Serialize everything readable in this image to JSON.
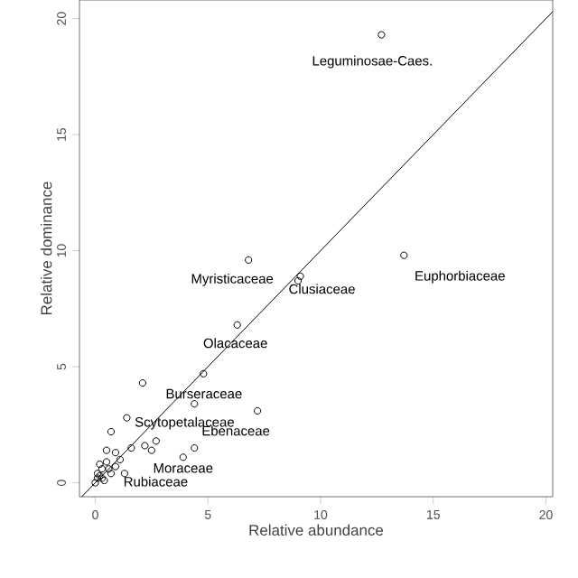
{
  "chart_data": {
    "type": "scatter",
    "xlabel": "Relative abundance",
    "ylabel": "Relative dominance",
    "xlim": [
      -0.7,
      20.3
    ],
    "ylim": [
      -0.6,
      20.8
    ],
    "xticks": [
      0,
      5,
      10,
      15,
      20
    ],
    "yticks": [
      0,
      5,
      10,
      15,
      20
    ],
    "series": [
      {
        "color": "#000000",
        "marker": "circle",
        "x": [
          12.7,
          13.7,
          6.8,
          9.1,
          9.0,
          6.3,
          4.8,
          2.1,
          4.4,
          7.2,
          1.4,
          0.7,
          2.7,
          2.2,
          1.6,
          2.5,
          4.4,
          3.9,
          0.5,
          0.9,
          1.1,
          0.3,
          0.7,
          0.2,
          0.4,
          0.1,
          0.6,
          1.3,
          0.2,
          0.5,
          0.9,
          0.0,
          0.1,
          0.3
        ],
        "values": [
          19.3,
          9.8,
          9.6,
          8.9,
          8.7,
          6.8,
          4.7,
          4.3,
          3.4,
          3.1,
          2.8,
          2.2,
          1.8,
          1.6,
          1.5,
          1.4,
          1.5,
          1.1,
          0.9,
          0.7,
          1.0,
          0.6,
          0.4,
          0.3,
          0.1,
          0.2,
          0.6,
          0.4,
          0.8,
          1.4,
          1.3,
          0.0,
          0.4,
          0.2
        ]
      },
      {
        "type": "line",
        "color": "#000000",
        "marker": "none",
        "x": [
          -0.6,
          20.3
        ],
        "values": [
          -0.6,
          20.3
        ]
      }
    ],
    "annotations": [
      {
        "text": "Leguminosae-Caes.",
        "x": 12.7,
        "y": 19.3
      },
      {
        "text": "Euphorbiaceae",
        "x": 13.7,
        "y": 9.8
      },
      {
        "text": "Myristicaceae",
        "x": 6.8,
        "y": 9.6
      },
      {
        "text": "Clusiaceae",
        "x": 9.1,
        "y": 8.9
      },
      {
        "text": "Olacaceae",
        "x": 6.3,
        "y": 6.8
      },
      {
        "text": "Burseraceae",
        "x": 2.1,
        "y": 4.3
      },
      {
        "text": "Scytopetalaceae",
        "x": 1.4,
        "y": 2.8
      },
      {
        "text": "Ebenaceae",
        "x": 7.2,
        "y": 3.1
      },
      {
        "text": "Moraceae",
        "x": 3.9,
        "y": 1.1
      },
      {
        "text": "Rubiaceae",
        "x": 0.6,
        "y": 0.6
      }
    ]
  }
}
